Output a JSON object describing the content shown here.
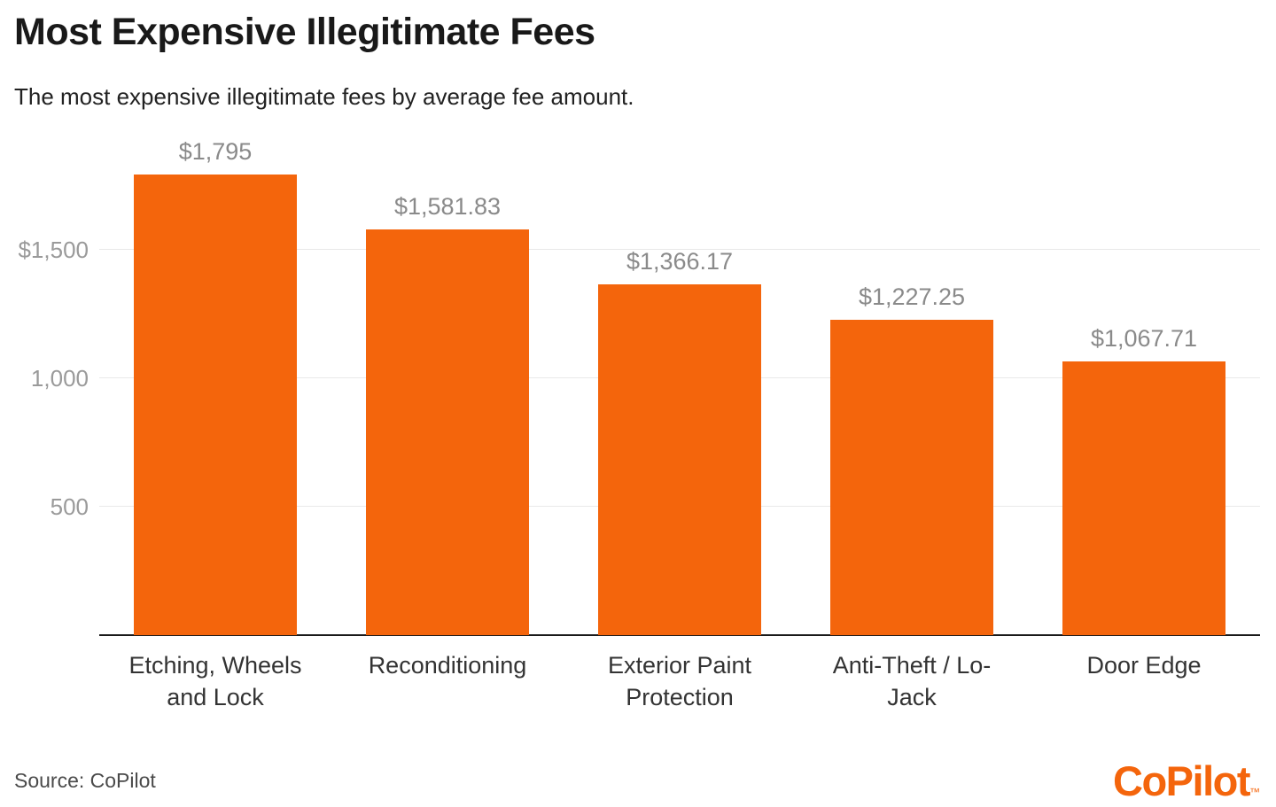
{
  "header": {
    "title": "Most Expensive Illegitimate Fees",
    "subtitle": "The most expensive illegitimate fees by average fee amount."
  },
  "chart_data": {
    "type": "bar",
    "title": "Most Expensive Illegitimate Fees",
    "subtitle": "The most expensive illegitimate fees by average fee amount.",
    "categories": [
      "Etching, Wheels and Lock",
      "Reconditioning",
      "Exterior Paint Protection",
      "Anti-Theft / Lo-Jack",
      "Door Edge"
    ],
    "values": [
      1795,
      1581.83,
      1366.17,
      1227.25,
      1067.71
    ],
    "value_labels": [
      "$1,795",
      "$1,581.83",
      "$1,366.17",
      "$1,227.25",
      "$1,067.71"
    ],
    "xlabel": "",
    "ylabel": "",
    "ylim": [
      0,
      1795
    ],
    "y_ticks": [
      500,
      1000,
      1500
    ],
    "y_tick_labels": [
      "500",
      "1,000",
      "$1,500"
    ],
    "grid": true,
    "legend": "none",
    "bar_color": "#F4650C"
  },
  "footer": {
    "source": "Source: CoPilot",
    "logo_text": "CoPilot",
    "logo_tm": "™"
  },
  "colors": {
    "accent": "#F4650C",
    "gridline": "#e9e9e9",
    "axis_tick": "#9a9a9a",
    "value_label": "#8a8a8a",
    "category_label": "#333333",
    "title": "#191919",
    "baseline": "#1a1a1a"
  }
}
